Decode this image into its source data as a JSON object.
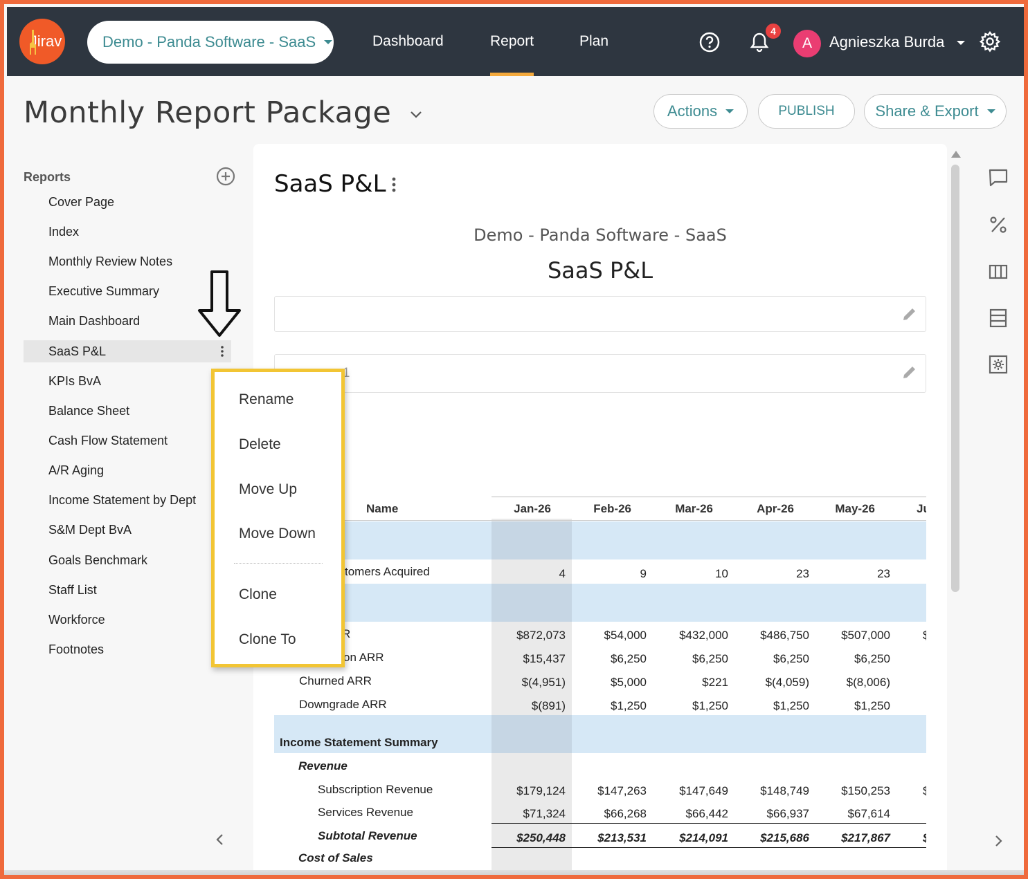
{
  "brand": {
    "logo_text": "Jirav",
    "accent": "#f05a28"
  },
  "topbar": {
    "company": "Demo - Panda Software - SaaS",
    "nav": [
      {
        "label": "Dashboard",
        "active": false
      },
      {
        "label": "Report",
        "active": true
      },
      {
        "label": "Plan",
        "active": false
      }
    ],
    "notifications_count": "4",
    "avatar_initial": "A",
    "user_name": "Agnieszka Burda",
    "icons": [
      "help-icon",
      "bell-icon",
      "settings-icon"
    ]
  },
  "header": {
    "title": "Monthly Report Package",
    "actions_label": "Actions",
    "publish_label": "PUBLISH",
    "share_label": "Share & Export"
  },
  "sidebar": {
    "heading": "Reports",
    "items": [
      {
        "label": "Cover Page"
      },
      {
        "label": "Index"
      },
      {
        "label": "Monthly Review Notes"
      },
      {
        "label": "Executive Summary"
      },
      {
        "label": "Main Dashboard"
      },
      {
        "label": "SaaS P&L",
        "active": true
      },
      {
        "label": "KPIs BvA"
      },
      {
        "label": "Balance Sheet"
      },
      {
        "label": "Cash Flow Statement"
      },
      {
        "label": "A/R Aging"
      },
      {
        "label": "Income Statement by Dept"
      },
      {
        "label": "S&M Dept BvA"
      },
      {
        "label": "Goals Benchmark"
      },
      {
        "label": "Staff List"
      },
      {
        "label": "Workforce"
      },
      {
        "label": "Footnotes"
      }
    ]
  },
  "context_menu": {
    "items": [
      "Rename",
      "Delete",
      "Move Up",
      "Move Down",
      "Clone",
      "Clone To"
    ]
  },
  "report": {
    "title": "SaaS P&L",
    "company_subtitle": "Demo - Panda Software - SaaS",
    "report_subtitle": "SaaS P&L",
    "textbox2_partial": "a 1",
    "columns": {
      "name": "Name",
      "months": [
        "Jan-26",
        "Feb-26",
        "Mar-26",
        "Apr-26",
        "May-26",
        "Ju"
      ]
    },
    "rows": [
      {
        "label": "tomers Acquired",
        "values": [
          "4",
          "9",
          "10",
          "23",
          "23"
        ]
      },
      {
        "label": "R",
        "values": [
          "$872,073",
          "$54,000",
          "$432,000",
          "$486,750",
          "$507,000"
        ],
        "trail": "$"
      },
      {
        "label": "on ARR",
        "values": [
          "$15,437",
          "$6,250",
          "$6,250",
          "$6,250",
          "$6,250"
        ]
      },
      {
        "label": "Churned ARR",
        "values": [
          "$(4,951)",
          "$5,000",
          "$221",
          "$(4,059)",
          "$(8,006)"
        ]
      },
      {
        "label": "Downgrade ARR",
        "values": [
          "$(891)",
          "$1,250",
          "$1,250",
          "$1,250",
          "$1,250"
        ]
      }
    ],
    "income_section": "Income Statement Summary",
    "revenue_group": "Revenue",
    "revenue_rows": [
      {
        "label": "Subscription Revenue",
        "values": [
          "$179,124",
          "$147,263",
          "$147,649",
          "$148,749",
          "$150,253"
        ],
        "trail": "$"
      },
      {
        "label": "Services Revenue",
        "values": [
          "$71,324",
          "$66,268",
          "$66,442",
          "$66,937",
          "$67,614"
        ]
      }
    ],
    "subtotal": {
      "label": "Subtotal Revenue",
      "values": [
        "$250,448",
        "$213,531",
        "$214,091",
        "$215,686",
        "$217,867"
      ],
      "trail": "$"
    },
    "cost_group": "Cost of Sales"
  },
  "right_rail": [
    "comment-icon",
    "percent-icon",
    "columns-icon",
    "rows-icon",
    "settings-box-icon"
  ]
}
